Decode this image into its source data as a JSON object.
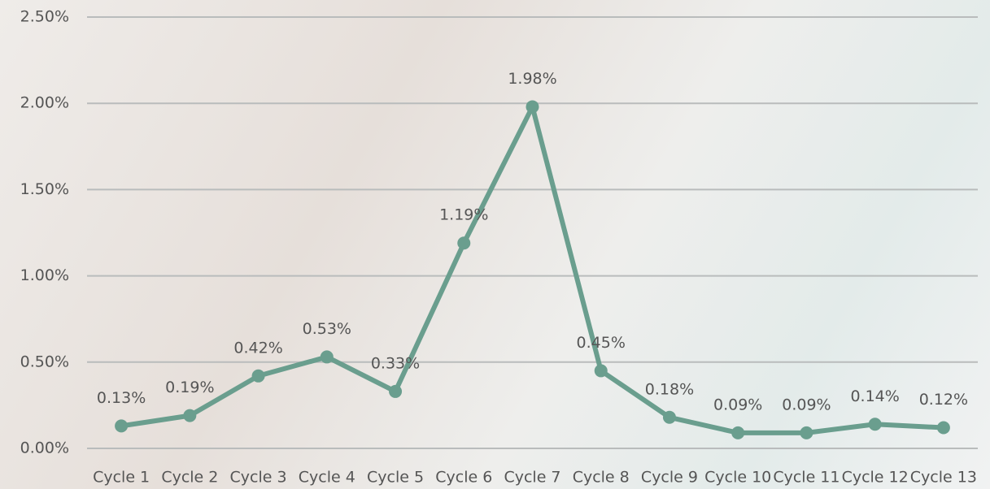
{
  "chart_data": {
    "type": "line",
    "categories": [
      "Cycle 1",
      "Cycle 2",
      "Cycle 3",
      "Cycle 4",
      "Cycle 5",
      "Cycle 6",
      "Cycle 7",
      "Cycle 8",
      "Cycle 9",
      "Cycle 10",
      "Cycle 11",
      "Cycle 12",
      "Cycle 13"
    ],
    "values": [
      0.13,
      0.19,
      0.42,
      0.53,
      0.33,
      1.19,
      1.98,
      0.45,
      0.18,
      0.09,
      0.09,
      0.14,
      0.12
    ],
    "value_labels": [
      "0.13%",
      "0.19%",
      "0.42%",
      "0.53%",
      "0.33%",
      "1.19%",
      "1.98%",
      "0.45%",
      "0.18%",
      "0.09%",
      "0.09%",
      "0.14%",
      "0.12%"
    ],
    "color": "#6a9e8e",
    "ylim": [
      0,
      2.5
    ],
    "yticks": [
      {
        "value": 0,
        "label": "0.00%"
      },
      {
        "value": 0.5,
        "label": "0.50%"
      },
      {
        "value": 1,
        "label": "1.00%"
      },
      {
        "value": 1.5,
        "label": "1.50%"
      },
      {
        "value": 2,
        "label": "2.00%"
      },
      {
        "value": 2.5,
        "label": "2.50%"
      }
    ],
    "grid": true
  }
}
